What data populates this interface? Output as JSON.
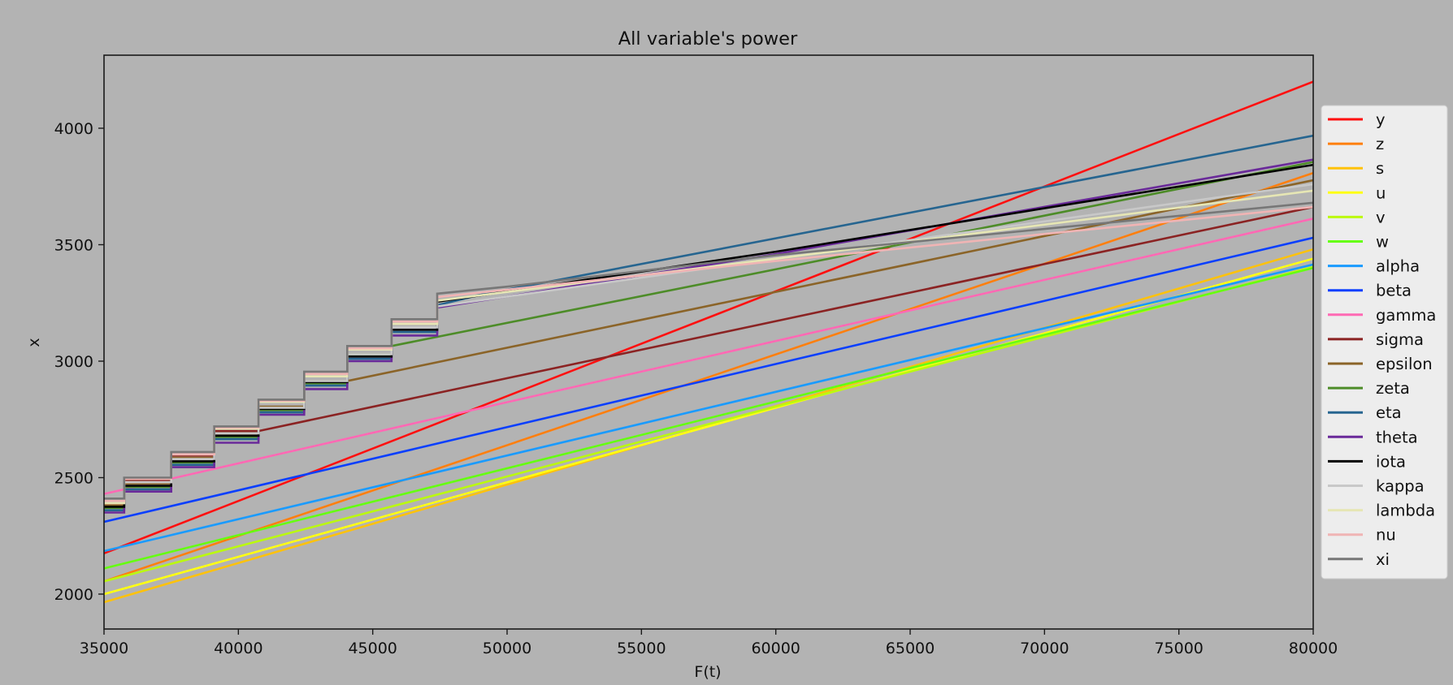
{
  "chart_data": {
    "type": "line",
    "title": "All variable's power",
    "xlabel": "F(t)",
    "ylabel": "x",
    "xlim": [
      35000,
      80000
    ],
    "ylim": [
      1850,
      4310
    ],
    "grid": false,
    "legend_position": "right outside",
    "background": "#b3b3b3",
    "xticks": [
      35000,
      40000,
      45000,
      50000,
      55000,
      60000,
      65000,
      70000,
      75000,
      80000
    ],
    "xtick_labels": [
      "35000",
      "40000",
      "45000",
      "50000",
      "55000",
      "60000",
      "65000",
      "70000",
      "75000",
      "80000"
    ],
    "yticks": [
      2000,
      2500,
      3000,
      3500,
      4000
    ],
    "ytick_labels": [
      "2000",
      "2500",
      "3000",
      "3500",
      "4000"
    ],
    "series": [
      {
        "name": "y",
        "color": "#ff1010",
        "points": [
          [
            35000,
            2175
          ],
          [
            80000,
            4200
          ]
        ]
      },
      {
        "name": "z",
        "color": "#ff7f0e",
        "points": [
          [
            35000,
            2055
          ],
          [
            80000,
            3808
          ]
        ]
      },
      {
        "name": "s",
        "color": "#ffc20a",
        "points": [
          [
            35000,
            1965
          ],
          [
            80000,
            3480
          ]
        ]
      },
      {
        "name": "u",
        "color": "#ffff14",
        "points": [
          [
            35000,
            2000
          ],
          [
            80000,
            3440
          ]
        ]
      },
      {
        "name": "v",
        "color": "#bbf90f",
        "points": [
          [
            35000,
            2055
          ],
          [
            80000,
            3405
          ]
        ]
      },
      {
        "name": "w",
        "color": "#66ff11",
        "points": [
          [
            35000,
            2110
          ],
          [
            80000,
            3400
          ]
        ]
      },
      {
        "name": "alpha",
        "color": "#1a9bff",
        "points": [
          [
            35000,
            2185
          ],
          [
            80000,
            3415
          ]
        ]
      },
      {
        "name": "beta",
        "color": "#0a3fff",
        "points": [
          [
            35000,
            2310
          ],
          [
            80000,
            3530
          ]
        ]
      },
      {
        "name": "gamma",
        "color": "#ff69b4",
        "points": [
          [
            35000,
            2430
          ],
          [
            80000,
            3612
          ]
        ]
      },
      {
        "name": "sigma",
        "color": "#8b2323",
        "points": [
          [
            35000,
            2385
          ],
          [
            35750,
            2385
          ],
          [
            35750,
            2490
          ],
          [
            37500,
            2490
          ],
          [
            37500,
            2595
          ],
          [
            39100,
            2595
          ],
          [
            39100,
            2700
          ],
          [
            40750,
            2700
          ],
          [
            80000,
            3662
          ]
        ]
      },
      {
        "name": "epsilon",
        "color": "#8b6428",
        "points": [
          [
            35000,
            2380
          ],
          [
            35750,
            2380
          ],
          [
            35750,
            2475
          ],
          [
            37500,
            2475
          ],
          [
            37500,
            2585
          ],
          [
            39100,
            2585
          ],
          [
            39100,
            2690
          ],
          [
            40750,
            2690
          ],
          [
            40750,
            2805
          ],
          [
            42450,
            2805
          ],
          [
            42450,
            2915
          ],
          [
            44050,
            2915
          ],
          [
            80000,
            3777
          ]
        ]
      },
      {
        "name": "zeta",
        "color": "#4d8c28",
        "points": [
          [
            35000,
            2370
          ],
          [
            35750,
            2370
          ],
          [
            35750,
            2460
          ],
          [
            37500,
            2460
          ],
          [
            37500,
            2565
          ],
          [
            39100,
            2565
          ],
          [
            39100,
            2675
          ],
          [
            40750,
            2675
          ],
          [
            40750,
            2790
          ],
          [
            42450,
            2790
          ],
          [
            42450,
            2905
          ],
          [
            44050,
            2905
          ],
          [
            44050,
            3030
          ],
          [
            45700,
            3030
          ],
          [
            45700,
            3065
          ],
          [
            80000,
            3855
          ]
        ]
      },
      {
        "name": "eta",
        "color": "#266590",
        "points": [
          [
            35000,
            2360
          ],
          [
            35750,
            2360
          ],
          [
            35750,
            2450
          ],
          [
            37500,
            2450
          ],
          [
            37500,
            2555
          ],
          [
            39100,
            2555
          ],
          [
            39100,
            2665
          ],
          [
            40750,
            2665
          ],
          [
            40750,
            2780
          ],
          [
            42450,
            2780
          ],
          [
            42450,
            2895
          ],
          [
            44050,
            2895
          ],
          [
            44050,
            3010
          ],
          [
            45700,
            3010
          ],
          [
            45700,
            3125
          ],
          [
            47400,
            3125
          ],
          [
            47400,
            3240
          ],
          [
            49000,
            3285
          ],
          [
            80000,
            3968
          ]
        ]
      },
      {
        "name": "theta",
        "color": "#6a2a9a",
        "points": [
          [
            35000,
            2350
          ],
          [
            35750,
            2350
          ],
          [
            35750,
            2440
          ],
          [
            37500,
            2440
          ],
          [
            37500,
            2545
          ],
          [
            39100,
            2545
          ],
          [
            39100,
            2650
          ],
          [
            40750,
            2650
          ],
          [
            40750,
            2770
          ],
          [
            42450,
            2770
          ],
          [
            42450,
            2880
          ],
          [
            44050,
            2880
          ],
          [
            44050,
            3000
          ],
          [
            45700,
            3000
          ],
          [
            45700,
            3110
          ],
          [
            47400,
            3110
          ],
          [
            47400,
            3230
          ],
          [
            60000,
            3460
          ],
          [
            80000,
            3865
          ]
        ]
      },
      {
        "name": "iota",
        "color": "#000000",
        "points": [
          [
            35000,
            2375
          ],
          [
            35750,
            2375
          ],
          [
            35750,
            2465
          ],
          [
            37500,
            2465
          ],
          [
            37500,
            2570
          ],
          [
            39100,
            2570
          ],
          [
            39100,
            2680
          ],
          [
            40750,
            2680
          ],
          [
            40750,
            2795
          ],
          [
            42450,
            2795
          ],
          [
            42450,
            2910
          ],
          [
            44050,
            2910
          ],
          [
            44050,
            3020
          ],
          [
            45700,
            3020
          ],
          [
            45700,
            3135
          ],
          [
            47400,
            3135
          ],
          [
            47400,
            3255
          ],
          [
            60000,
            3470
          ],
          [
            80000,
            3843
          ]
        ]
      },
      {
        "name": "kappa",
        "color": "#c8c8c8",
        "points": [
          [
            35000,
            2395
          ],
          [
            35750,
            2395
          ],
          [
            35750,
            2480
          ],
          [
            37500,
            2480
          ],
          [
            37500,
            2580
          ],
          [
            39100,
            2580
          ],
          [
            39100,
            2690
          ],
          [
            40750,
            2690
          ],
          [
            40750,
            2800
          ],
          [
            42450,
            2800
          ],
          [
            42450,
            2915
          ],
          [
            44050,
            2915
          ],
          [
            44050,
            3030
          ],
          [
            45700,
            3030
          ],
          [
            45700,
            3145
          ],
          [
            47400,
            3145
          ],
          [
            47400,
            3235
          ],
          [
            60000,
            3440
          ],
          [
            80000,
            3760
          ]
        ]
      },
      {
        "name": "lambda",
        "color": "#e6e6b4",
        "points": [
          [
            35000,
            2390
          ],
          [
            35750,
            2390
          ],
          [
            35750,
            2495
          ],
          [
            37500,
            2495
          ],
          [
            37500,
            2600
          ],
          [
            39100,
            2600
          ],
          [
            39100,
            2710
          ],
          [
            40750,
            2710
          ],
          [
            40750,
            2825
          ],
          [
            42450,
            2825
          ],
          [
            42450,
            2935
          ],
          [
            44050,
            2935
          ],
          [
            44050,
            3050
          ],
          [
            45700,
            3050
          ],
          [
            45700,
            3160
          ],
          [
            47400,
            3160
          ],
          [
            47400,
            3260
          ],
          [
            60000,
            3440
          ],
          [
            80000,
            3732
          ]
        ]
      },
      {
        "name": "nu",
        "color": "#f0b4b4",
        "points": [
          [
            35000,
            2400
          ],
          [
            35750,
            2400
          ],
          [
            35750,
            2495
          ],
          [
            37500,
            2495
          ],
          [
            37500,
            2600
          ],
          [
            39100,
            2600
          ],
          [
            39100,
            2715
          ],
          [
            40750,
            2715
          ],
          [
            40750,
            2830
          ],
          [
            42450,
            2830
          ],
          [
            42450,
            2945
          ],
          [
            44050,
            2945
          ],
          [
            44050,
            3055
          ],
          [
            45700,
            3055
          ],
          [
            45700,
            3170
          ],
          [
            47400,
            3170
          ],
          [
            47400,
            3275
          ],
          [
            60000,
            3430
          ],
          [
            80000,
            3662
          ]
        ]
      },
      {
        "name": "xi",
        "color": "#777777",
        "points": [
          [
            35000,
            2410
          ],
          [
            35750,
            2410
          ],
          [
            35750,
            2500
          ],
          [
            37500,
            2500
          ],
          [
            37500,
            2610
          ],
          [
            39100,
            2610
          ],
          [
            39100,
            2720
          ],
          [
            40750,
            2720
          ],
          [
            40750,
            2835
          ],
          [
            42450,
            2835
          ],
          [
            42450,
            2955
          ],
          [
            44050,
            2955
          ],
          [
            44050,
            3065
          ],
          [
            45700,
            3065
          ],
          [
            45700,
            3180
          ],
          [
            47400,
            3180
          ],
          [
            47400,
            3290
          ],
          [
            50000,
            3320
          ],
          [
            60000,
            3455
          ],
          [
            80000,
            3680
          ]
        ]
      }
    ]
  }
}
